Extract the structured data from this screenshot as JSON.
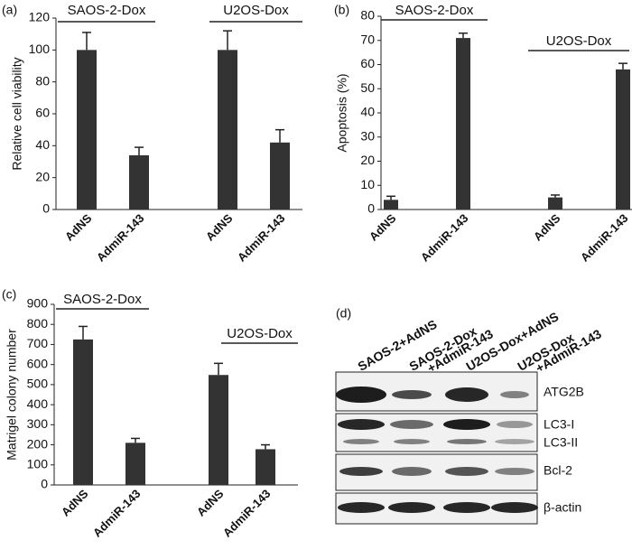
{
  "chart_data": [
    {
      "type": "bar",
      "panel_label": "(a)",
      "ylabel": "Relative cell viability",
      "categories": [
        "AdNS",
        "AdmiR-143",
        "AdNS",
        "AdmiR-143"
      ],
      "values": [
        100,
        34,
        100,
        42
      ],
      "errors": [
        11,
        5,
        12,
        8
      ],
      "color": "#333333",
      "ylim": [
        0,
        120
      ],
      "yticks": [
        0,
        20,
        40,
        60,
        80,
        100,
        120
      ],
      "annotations": [
        "SAOS-2-Dox",
        "U2OS-Dox"
      ]
    },
    {
      "type": "bar",
      "panel_label": "(b)",
      "ylabel": "Apoptosis (%)",
      "categories": [
        "AdNS",
        "AdmiR-143",
        "AdNS",
        "AdmiR-143"
      ],
      "values": [
        4,
        71,
        5,
        58
      ],
      "errors": [
        1.5,
        2,
        1,
        2.5
      ],
      "color": "#333333",
      "ylim": [
        0,
        80
      ],
      "yticks": [
        0,
        10,
        20,
        30,
        40,
        50,
        60,
        70,
        80
      ],
      "annotations": [
        "SAOS-2-Dox",
        "U2OS-Dox"
      ]
    },
    {
      "type": "bar",
      "panel_label": "(c)",
      "ylabel": "Matrigel colony number",
      "categories": [
        "AdNS",
        "AdmiR-143",
        "AdNS",
        "AdmiR-143"
      ],
      "values": [
        725,
        210,
        548,
        178
      ],
      "errors": [
        65,
        22,
        58,
        22
      ],
      "color": "#333333",
      "ylim": [
        0,
        900
      ],
      "yticks": [
        0,
        100,
        200,
        300,
        400,
        500,
        600,
        700,
        800,
        900
      ],
      "annotations": [
        "SAOS-2-Dox",
        "U2OS-Dox"
      ]
    }
  ],
  "blot": {
    "panel_label": "(d)",
    "columns": [
      [
        "SAOS-2+AdNS"
      ],
      [
        "SAOS-2-Dox",
        "+AdmiR-143"
      ],
      [
        "U2OS-Dox+AdNS"
      ],
      [
        "U2OS-Dox",
        "+AdmiR-143"
      ]
    ],
    "rows": [
      [
        "ATG2B"
      ],
      [
        "LC3-I",
        "LC3-II"
      ],
      [
        "Bcl-2"
      ],
      [
        "β-actin"
      ]
    ]
  }
}
